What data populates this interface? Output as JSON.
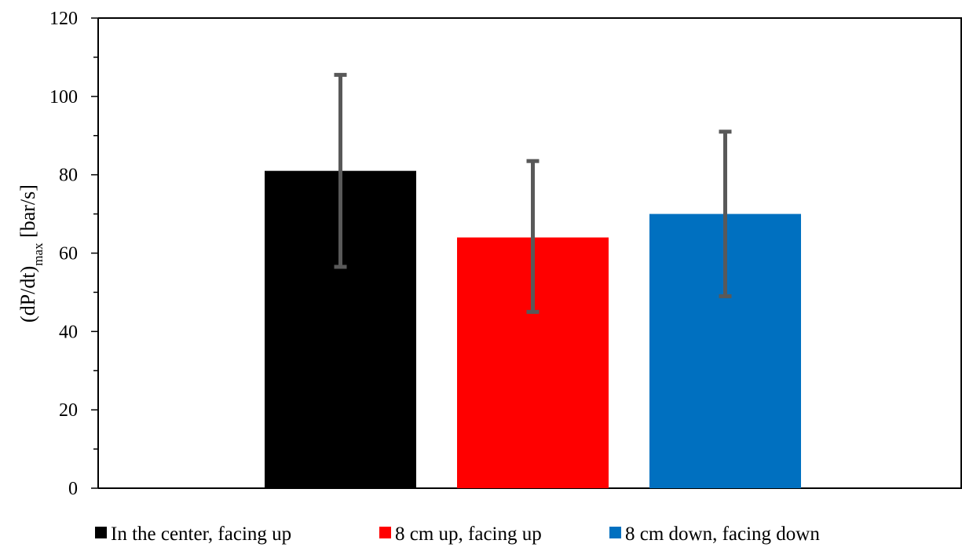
{
  "chart_data": {
    "type": "bar",
    "title": "",
    "xlabel": "",
    "ylabel": {
      "main": "(dP/dt)",
      "subscript": "max",
      "unit": " [bar/s]"
    },
    "ylim": [
      0,
      120
    ],
    "yticks": [
      0,
      20,
      40,
      60,
      80,
      100,
      120
    ],
    "minor_tick_step": 10,
    "grid": false,
    "legend_position": "bottom",
    "error_bar_color": "#595959",
    "series": [
      {
        "name": "In the center, facing up",
        "value": 81,
        "error_low": 56.5,
        "error_high": 105.5,
        "color": "#000000"
      },
      {
        "name": "8 cm up, facing up",
        "value": 64,
        "error_low": 45,
        "error_high": 83.5,
        "color": "#ff0000"
      },
      {
        "name": "8 cm down, facing down",
        "value": 70,
        "error_low": 49,
        "error_high": 91,
        "color": "#0070c0"
      }
    ]
  }
}
